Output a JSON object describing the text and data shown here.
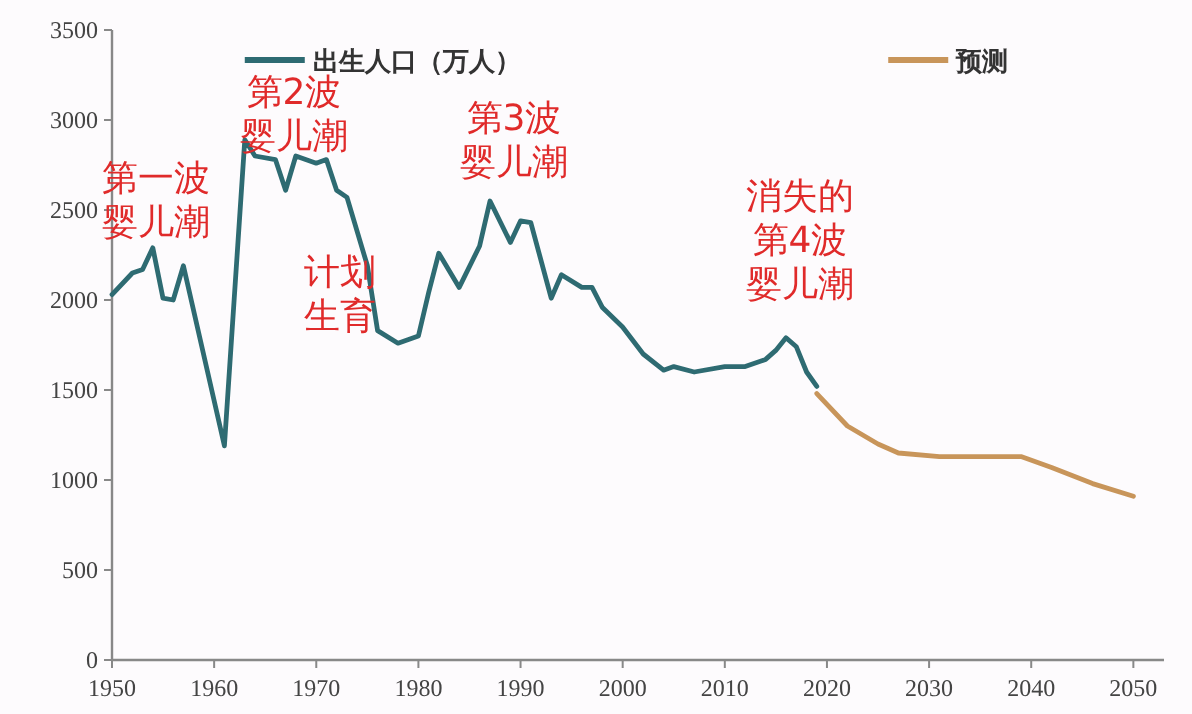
{
  "chart_data": {
    "type": "line",
    "xlim": [
      1950,
      2053
    ],
    "ylim": [
      0,
      3500
    ],
    "xticks": [
      1950,
      1960,
      1970,
      1980,
      1990,
      2000,
      2010,
      2020,
      2030,
      2040,
      2050
    ],
    "yticks": [
      0,
      500,
      1000,
      1500,
      2000,
      2500,
      3000,
      3500
    ],
    "grid": false,
    "legend": "top",
    "marker": "none",
    "line_style": "solid",
    "series": [
      {
        "name": "出生人口（万人）",
        "color": "#2e6b72",
        "x": [
          1950,
          1952,
          1953,
          1954,
          1955,
          1956,
          1957,
          1961,
          1963,
          1964,
          1966,
          1967,
          1968,
          1970,
          1971,
          1972,
          1973,
          1975,
          1976,
          1978,
          1980,
          1981,
          1982,
          1984,
          1986,
          1987,
          1989,
          1990,
          1991,
          1993,
          1994,
          1996,
          1997,
          1998,
          2000,
          2002,
          2004,
          2005,
          2007,
          2010,
          2012,
          2014,
          2015,
          2016,
          2017,
          2018,
          2019
        ],
        "values": [
          2030,
          2150,
          2170,
          2290,
          2010,
          2000,
          2190,
          1190,
          2890,
          2800,
          2780,
          2610,
          2800,
          2760,
          2780,
          2610,
          2570,
          2190,
          1830,
          1760,
          1800,
          2040,
          2260,
          2070,
          2300,
          2550,
          2320,
          2440,
          2430,
          2010,
          2140,
          2070,
          2070,
          1960,
          1850,
          1700,
          1610,
          1630,
          1600,
          1630,
          1630,
          1670,
          1720,
          1790,
          1740,
          1600,
          1520
        ]
      },
      {
        "name": "预测",
        "color": "#c8955a",
        "x": [
          2019,
          2022,
          2025,
          2027,
          2031,
          2039,
          2042,
          2046,
          2050
        ],
        "values": [
          1480,
          1300,
          1200,
          1150,
          1130,
          1130,
          1070,
          980,
          910
        ]
      }
    ],
    "annotations": [
      "第一波婴儿潮",
      "第2波婴儿潮",
      "计划生育",
      "第3波婴儿潮",
      "消失的第4波婴儿潮"
    ]
  }
}
